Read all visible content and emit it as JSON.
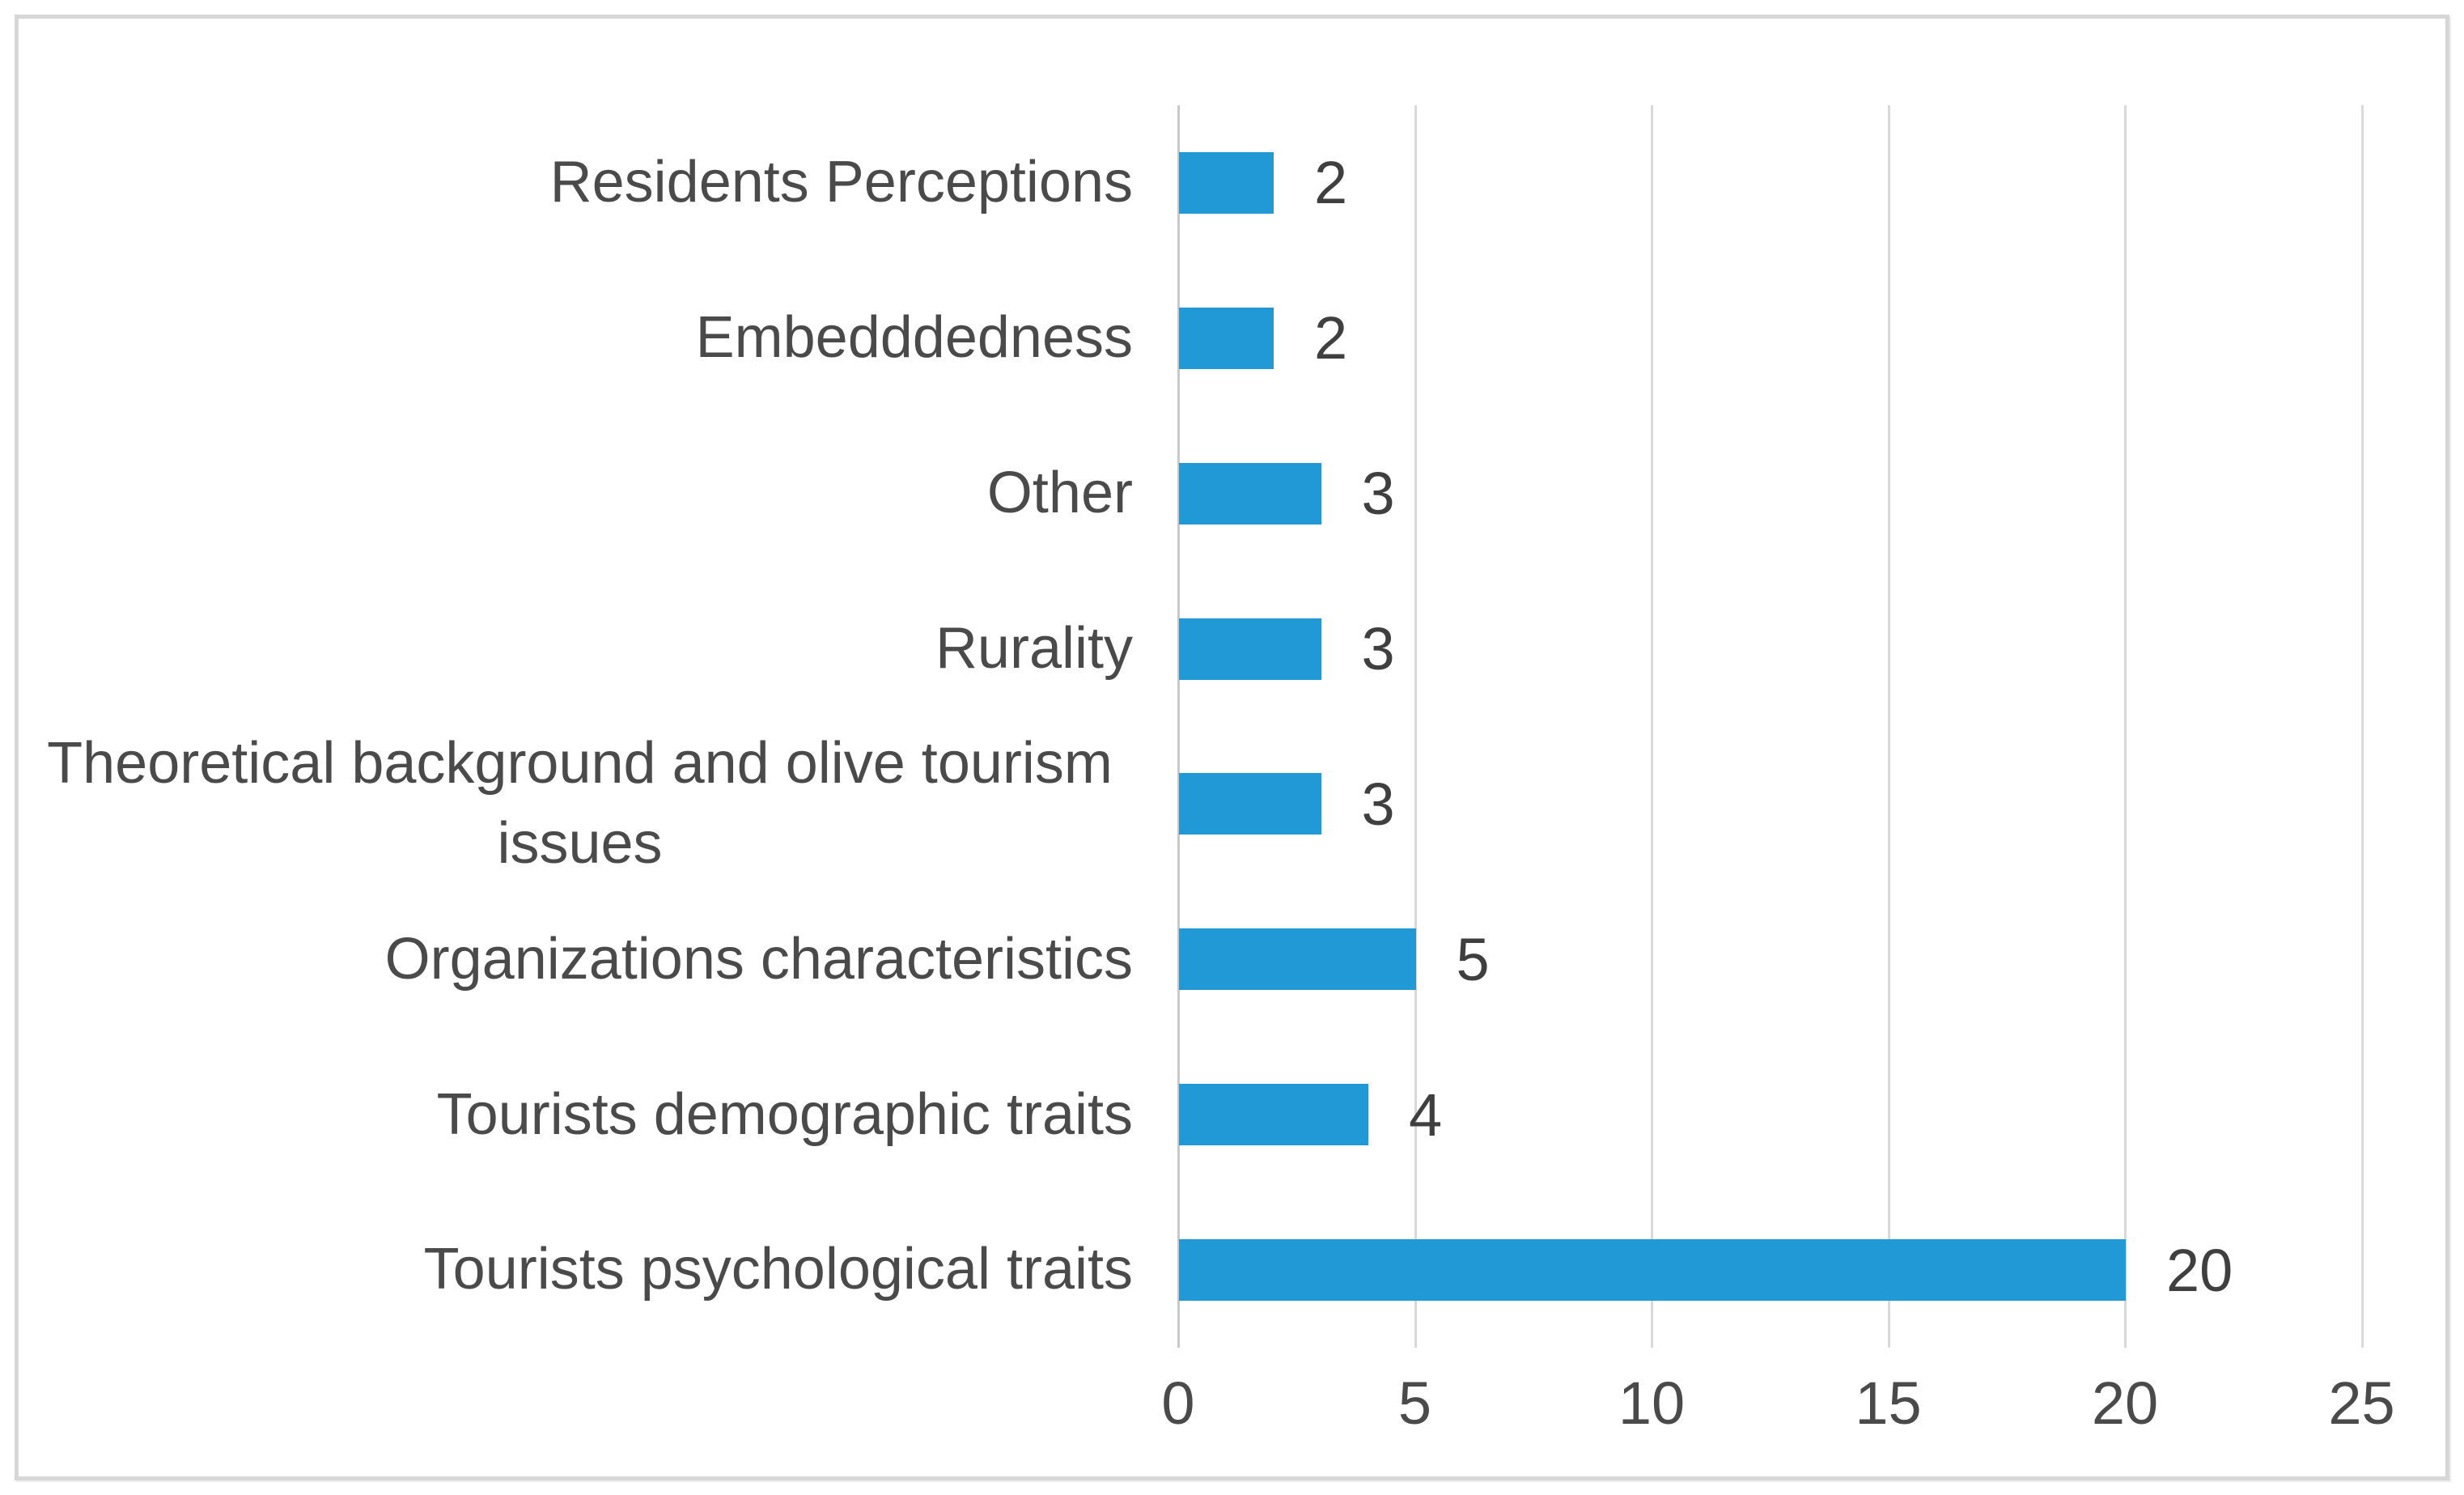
{
  "chart_data": {
    "type": "bar",
    "orientation": "horizontal",
    "title": "",
    "xlabel": "",
    "ylabel": "",
    "categories": [
      "Residents Perceptions",
      "Embedddedness",
      "Other",
      "Rurality",
      "Theoretical background  and olive tourism issues",
      "Organizations characteristics",
      "Tourists demographic traits",
      "Tourists psychological traits"
    ],
    "values": [
      2,
      2,
      3,
      3,
      3,
      5,
      4,
      20
    ],
    "data_labels": [
      "2",
      "2",
      "3",
      "3",
      "3",
      "5",
      "4",
      "20"
    ],
    "x_ticks": [
      "0",
      "5",
      "10",
      "15",
      "20",
      "25"
    ],
    "xlim": [
      0,
      25
    ],
    "grid": "vertical gridlines at every tick",
    "legend_position": "none",
    "colors": {
      "bar": "#2199D6",
      "gridline": "#D9D9D9",
      "zero_axis": "#C9C9C9",
      "category_label": "#4A4A4A",
      "value_label": "#3F3F3F",
      "figure_border": "#D7D7D7",
      "background": "#FFFFFF"
    }
  }
}
